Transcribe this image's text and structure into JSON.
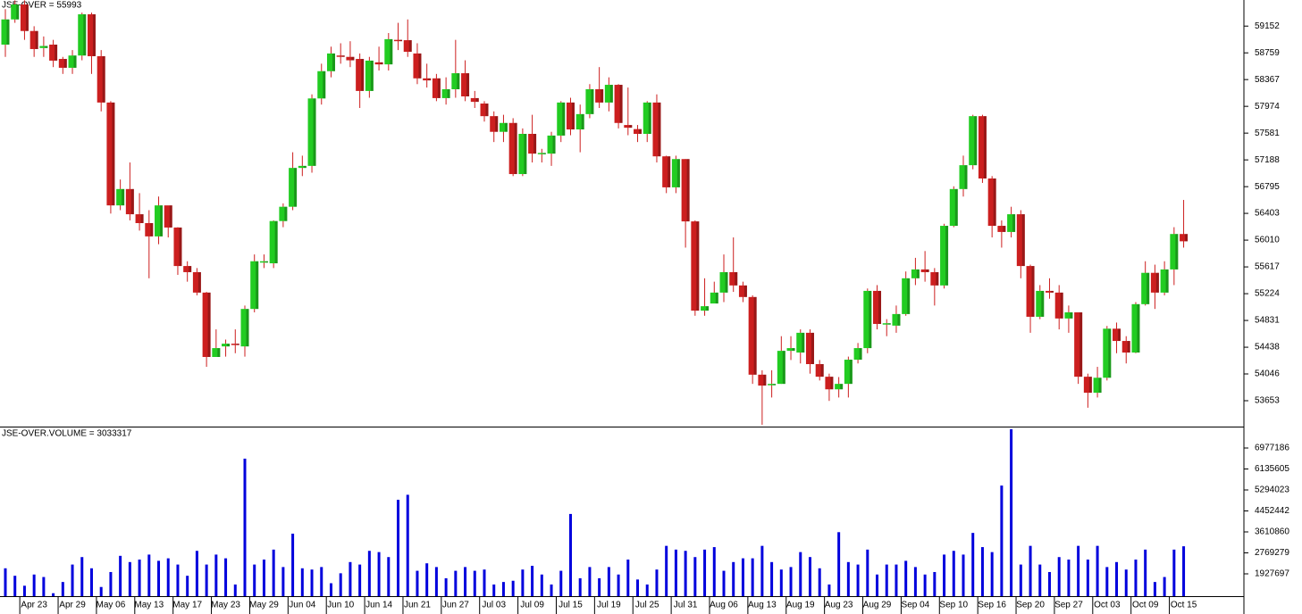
{
  "chart_data": [
    {
      "type": "candlestick",
      "title": "JSE-OVER = 55993",
      "open": [
        58880,
        59250,
        59470,
        59080,
        58830,
        58880,
        58670,
        58540,
        58720,
        59325,
        58710,
        58030,
        56520,
        56760,
        56390,
        56260,
        56065,
        56520,
        56195,
        55630,
        55540,
        55240,
        54295,
        54450,
        54490,
        54450,
        55000,
        55680,
        55670,
        56290,
        56500,
        57070,
        57100,
        58090,
        58490,
        58720,
        58700,
        58670,
        58200,
        58620,
        58590,
        58950,
        58945,
        58750,
        58385,
        58385,
        58095,
        58225,
        58460,
        58095,
        58015,
        57830,
        57600,
        57730,
        56980,
        57570,
        57280,
        57280,
        57545,
        58030,
        57635,
        57860,
        58225,
        58030,
        58290,
        57700,
        57640,
        57570,
        58030,
        57240,
        56785,
        57200,
        56285,
        54975,
        55080,
        55240,
        55540,
        55345,
        55175,
        54035,
        53880,
        53900,
        54385,
        54360,
        54650,
        54190,
        54005,
        53820,
        53900,
        54255,
        54425,
        55265,
        54780,
        54755,
        54925,
        55450,
        55580,
        55540,
        55345,
        56220,
        56760,
        57110,
        57830,
        56915,
        56220,
        56130,
        56390,
        55630,
        54885,
        55265,
        55240,
        54860,
        54950,
        54005,
        53770,
        53990,
        54710,
        54530,
        54360,
        55070,
        55530,
        55240,
        55580,
        56100
      ],
      "high": [
        59400,
        59530,
        59530,
        59150,
        59000,
        58950,
        58700,
        58800,
        59350,
        59350,
        58800,
        58050,
        56900,
        57150,
        56700,
        56450,
        56650,
        56500,
        56200,
        55700,
        55600,
        55250,
        54700,
        54550,
        54700,
        55050,
        55800,
        55800,
        56300,
        56550,
        57300,
        57250,
        58150,
        58600,
        58850,
        58900,
        58930,
        58750,
        58700,
        58850,
        59050,
        59200,
        59250,
        58900,
        58600,
        58450,
        58400,
        58950,
        58650,
        58200,
        58050,
        57900,
        57850,
        57800,
        57650,
        57850,
        57350,
        57600,
        58050,
        58100,
        58000,
        58300,
        58550,
        58400,
        58300,
        58250,
        57700,
        58050,
        58150,
        57250,
        57250,
        57200,
        56300,
        55450,
        55400,
        55800,
        56050,
        55400,
        55200,
        54100,
        54100,
        54600,
        54600,
        54700,
        54700,
        54250,
        54050,
        54000,
        54300,
        54500,
        55300,
        55350,
        54850,
        55050,
        55550,
        55750,
        55850,
        55600,
        56250,
        56800,
        57250,
        57850,
        57850,
        56950,
        56300,
        56500,
        56450,
        55650,
        55350,
        55450,
        55350,
        55050,
        54950,
        54050,
        54150,
        54750,
        54800,
        54600,
        55100,
        55700,
        55650,
        55700,
        56200,
        56600
      ],
      "low": [
        58700,
        59200,
        58950,
        58700,
        58700,
        58550,
        58450,
        58450,
        58650,
        58450,
        57900,
        56400,
        56450,
        56300,
        56150,
        55450,
        55950,
        56050,
        55500,
        55400,
        55200,
        54150,
        54300,
        54300,
        54350,
        54300,
        54950,
        55600,
        55600,
        56200,
        56450,
        56950,
        57000,
        58000,
        58400,
        58600,
        58550,
        57950,
        58100,
        58500,
        58500,
        58800,
        58700,
        58300,
        58250,
        58050,
        58000,
        58100,
        58050,
        57950,
        57750,
        57450,
        57450,
        56950,
        56950,
        57150,
        57150,
        57100,
        57450,
        57550,
        57300,
        57800,
        57950,
        57900,
        57650,
        57550,
        57450,
        57450,
        57150,
        56700,
        56700,
        55900,
        54900,
        54900,
        55100,
        55100,
        55250,
        55100,
        53900,
        53300,
        53700,
        53900,
        54250,
        54200,
        54050,
        53950,
        53650,
        53700,
        53700,
        54200,
        54350,
        54700,
        54600,
        54650,
        54900,
        55350,
        55400,
        55050,
        55300,
        56200,
        56650,
        57050,
        56850,
        56050,
        55900,
        56050,
        55450,
        54650,
        54850,
        55150,
        54700,
        54650,
        53900,
        53550,
        53700,
        53950,
        54350,
        54200,
        54350,
        55050,
        55000,
        55200,
        55350,
        55900
      ],
      "close": [
        59250,
        59470,
        59080,
        58815,
        58860,
        58645,
        58540,
        58720,
        59325,
        58710,
        58030,
        56520,
        56760,
        56390,
        56260,
        56065,
        56520,
        56195,
        55630,
        55540,
        55240,
        54295,
        54425,
        54490,
        54470,
        55000,
        55700,
        55700,
        56290,
        56500,
        57070,
        57100,
        58090,
        58490,
        58750,
        58710,
        58650,
        58200,
        58645,
        58590,
        58960,
        58945,
        58775,
        58385,
        58355,
        58095,
        58225,
        58460,
        58120,
        58040,
        57830,
        57600,
        57730,
        56980,
        57570,
        57280,
        57290,
        57545,
        58030,
        57635,
        57860,
        58225,
        58030,
        58290,
        57730,
        57660,
        57570,
        58030,
        57240,
        56785,
        57200,
        56285,
        54975,
        55040,
        55240,
        55540,
        55345,
        55175,
        54035,
        53875,
        53900,
        54385,
        54425,
        54650,
        54190,
        54005,
        53820,
        53900,
        54255,
        54425,
        55265,
        54780,
        54790,
        54925,
        55450,
        55580,
        55540,
        55345,
        56220,
        56760,
        57110,
        57830,
        56915,
        56220,
        56130,
        56390,
        55630,
        54885,
        55265,
        55240,
        54860,
        54950,
        54005,
        53770,
        53990,
        54710,
        54530,
        54360,
        55070,
        55530,
        55240,
        55580,
        56100,
        55993
      ],
      "up_color": "#22cc22",
      "down_color": "#cc1f1f",
      "title_color": "#cc0000",
      "ylim": [
        53273,
        59535
      ],
      "yticks": [
        53653,
        54046,
        54438,
        54831,
        55224,
        55617,
        56010,
        56403,
        56795,
        57188,
        57581,
        57974,
        58367,
        58759,
        59152
      ]
    },
    {
      "type": "bar",
      "title": "JSE-OVER.VOLUME = 3033317",
      "categories": [
        null,
        null,
        null,
        "Apr 23",
        null,
        null,
        null,
        "Apr 29",
        null,
        null,
        null,
        "May 06",
        null,
        null,
        null,
        "May 13",
        null,
        null,
        null,
        "May 17",
        null,
        null,
        null,
        "May 23",
        null,
        null,
        null,
        "May 29",
        null,
        null,
        null,
        "Jun 04",
        null,
        null,
        null,
        "Jun 10",
        null,
        null,
        null,
        "Jun 14",
        null,
        null,
        null,
        "Jun 21",
        null,
        null,
        null,
        "Jun 27",
        null,
        null,
        null,
        "Jul 03",
        null,
        null,
        null,
        "Jul 09",
        null,
        null,
        null,
        "Jul 15",
        null,
        null,
        null,
        "Jul 19",
        null,
        null,
        null,
        "Jul 25",
        null,
        null,
        null,
        "Jul 31",
        null,
        null,
        null,
        "Aug 06",
        null,
        null,
        null,
        "Aug 13",
        null,
        null,
        null,
        "Aug 19",
        null,
        null,
        null,
        "Aug 23",
        null,
        null,
        null,
        "Aug 29",
        null,
        null,
        null,
        "Sep 04",
        null,
        null,
        null,
        "Sep 10",
        null,
        null,
        null,
        "Sep 16",
        null,
        null,
        null,
        "Sep 20",
        null,
        null,
        null,
        "Sep 27",
        null,
        null,
        null,
        "Oct 03",
        null,
        null,
        null,
        "Oct 09",
        null,
        null,
        null,
        "Oct 15"
      ],
      "values": [
        2150000,
        1850000,
        1450000,
        1900000,
        1800000,
        1150000,
        1600000,
        2300000,
        2600000,
        2150000,
        1400000,
        2000000,
        2650000,
        2400000,
        2500000,
        2700000,
        2450000,
        2550000,
        2300000,
        1850000,
        2850000,
        2300000,
        2700000,
        2550000,
        1500000,
        6550000,
        2300000,
        2500000,
        2900000,
        2200000,
        3540000,
        2150000,
        2100000,
        2200000,
        1550000,
        1950000,
        2400000,
        2300000,
        2850000,
        2800000,
        2600000,
        4900000,
        5100000,
        2050000,
        2350000,
        2200000,
        1750000,
        2050000,
        2200000,
        2050000,
        2100000,
        1500000,
        1600000,
        1650000,
        2100000,
        2250000,
        1900000,
        1500000,
        2050000,
        4330000,
        1750000,
        2200000,
        1750000,
        2200000,
        1900000,
        2500000,
        1700000,
        1500000,
        2100000,
        3050000,
        2900000,
        2850000,
        2600000,
        2900000,
        3000000,
        2050000,
        2400000,
        2550000,
        2550000,
        3050000,
        2400000,
        2100000,
        2200000,
        2800000,
        2600000,
        2150000,
        1500000,
        3600000,
        2400000,
        2300000,
        2900000,
        1900000,
        2300000,
        2300000,
        2450000,
        2200000,
        1900000,
        2000000,
        2700000,
        2850000,
        2700000,
        3570000,
        3000000,
        2800000,
        5470000,
        7730000,
        2300000,
        3050000,
        2300000,
        2000000,
        2600000,
        2500000,
        3050000,
        2500000,
        3050000,
        2200000,
        2400000,
        2100000,
        2500000,
        2900000,
        1600000,
        1800000,
        2900000,
        3033317
      ],
      "color": "#0000dd",
      "title_color": "#0000cc",
      "ylim": [
        1032000,
        7765000
      ],
      "yticks": [
        1927697,
        2769279,
        3610860,
        4452442,
        5294023,
        6135605,
        6977186
      ]
    }
  ]
}
